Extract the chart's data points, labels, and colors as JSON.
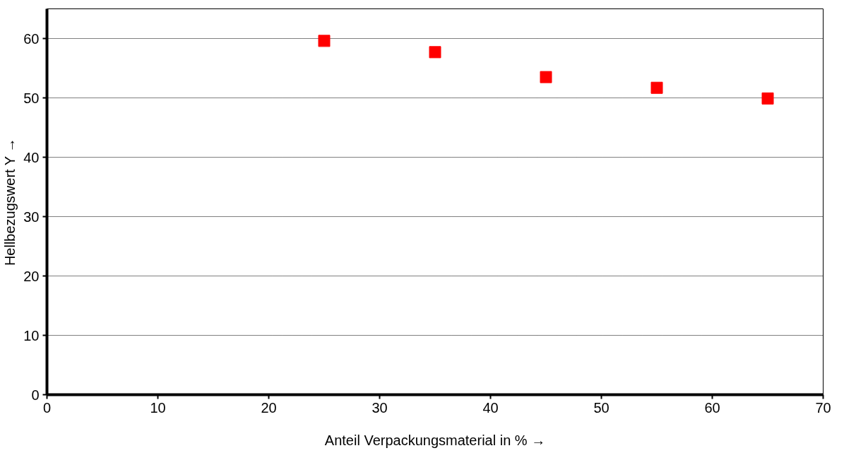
{
  "chart_data": {
    "type": "scatter",
    "xlabel": "Anteil Verpackungsmaterial in % →",
    "ylabel": "Hellbezugswert Y →",
    "x": [
      25,
      35,
      45,
      55,
      65
    ],
    "series": [
      {
        "color": "#ff0000",
        "values": [
          59.6,
          57.7,
          53.5,
          51.7,
          49.9
        ]
      }
    ],
    "xlim": [
      0,
      70
    ],
    "xticks": [
      0,
      10,
      20,
      30,
      40,
      50,
      60,
      70
    ],
    "ylim": [
      0,
      65
    ],
    "yticks": [
      0,
      10,
      20,
      30,
      40,
      50,
      60
    ],
    "grid": "y",
    "marker": "square"
  }
}
